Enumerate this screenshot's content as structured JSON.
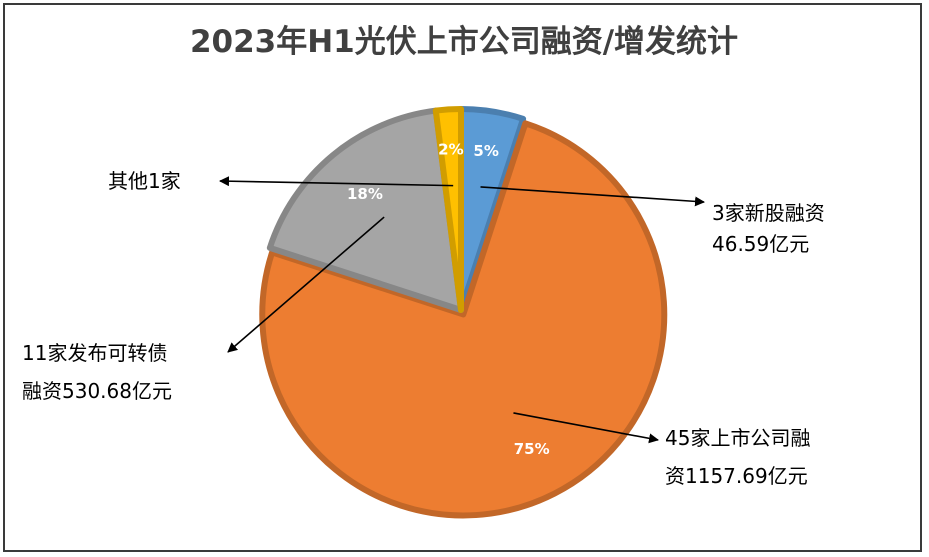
{
  "chart_data": {
    "type": "pie",
    "title": "2023年H1光伏上市公司融资/增发统计",
    "slices": [
      {
        "label": "5%",
        "value": 5,
        "color": "#5B9BD5",
        "annotation": [
          "3家新股融资",
          "46.59亿元"
        ]
      },
      {
        "label": "75%",
        "value": 75,
        "color": "#ED7D31",
        "annotation": [
          "45家上市公司融",
          "资1157.69亿元"
        ]
      },
      {
        "label": "18%",
        "value": 18,
        "color": "#A5A5A5",
        "annotation": [
          "11家发布可转债",
          "融资530.68亿元"
        ]
      },
      {
        "label": "2%",
        "value": 2,
        "color": "#FFC000",
        "annotation": [
          "其他1家"
        ]
      }
    ],
    "legend": "none"
  }
}
